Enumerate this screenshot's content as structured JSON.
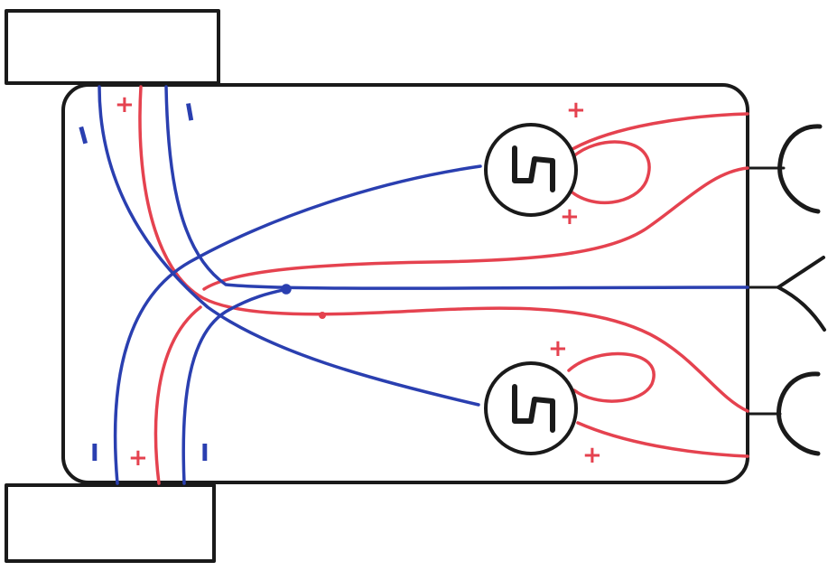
{
  "colors": {
    "outline": "#1a1a1a",
    "negative_wire": "#2a3fb0",
    "positive_wire": "#e5424f",
    "background": "#ffffff"
  },
  "labels": {
    "minus": "I",
    "plus": "+"
  },
  "components": {
    "top_block": "rectangle",
    "bottom_block": "rectangle",
    "chassis": "rounded-rectangle",
    "motor_top": "motor-icon",
    "motor_bottom": "motor-icon",
    "sensor_top": "antenna-cup-icon",
    "sensor_middle": "antenna-fork-icon",
    "sensor_bottom": "antenna-cup-icon"
  }
}
